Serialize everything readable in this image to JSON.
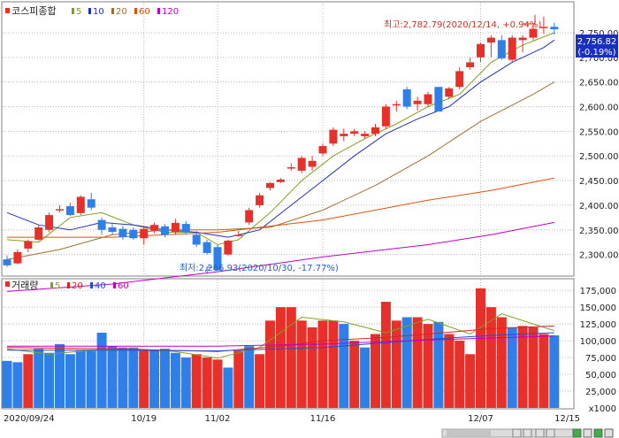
{
  "price_panel": {
    "title": "코스피종합",
    "ma_legend": [
      {
        "label": "5",
        "color": "#80a020"
      },
      {
        "label": "10",
        "color": "#2030c0"
      },
      {
        "label": "20",
        "color": "#a07030"
      },
      {
        "label": "60",
        "color": "#e05010"
      },
      {
        "label": "120",
        "color": "#c000c0"
      }
    ],
    "high_annotation": "최고:2,782.79(2020/12/14, +0.94%)",
    "low_annotation": "최저:2,266.93(2020/10/30, -17.77%)",
    "last_price": "2,756.82",
    "last_change": "(-0.19%)"
  },
  "volume_panel": {
    "title": "거래량",
    "ma_legend": [
      {
        "label": "5",
        "color": "#80a020"
      },
      {
        "label": "20",
        "color": "#e02020"
      },
      {
        "label": "40",
        "color": "#2050d0"
      },
      {
        "label": "60",
        "color": "#c000c0"
      }
    ],
    "unit": "x1000"
  },
  "colors": {
    "up": "#e8302a",
    "down": "#2f7fe8",
    "grid": "#b8b8b8"
  },
  "chart_data": [
    {
      "type": "candlestick",
      "title": "코스피종합",
      "y_ticks": [
        2300,
        2350,
        2400,
        2450,
        2500,
        2550,
        2600,
        2650,
        2700,
        2750
      ],
      "y_tick_labels": [
        "2,300.00",
        "2,350.00",
        "2,400.00",
        "2,450.00",
        "2,500.00",
        "2,550.00",
        "2,600.00",
        "2,650.00",
        "2,700.00",
        "2,750.00"
      ],
      "ylim": [
        2258,
        2811
      ],
      "x_tick_labels": [
        {
          "index": 0,
          "label": "2020/09/24"
        },
        {
          "index": 13,
          "label": "10/19"
        },
        {
          "index": 20,
          "label": "11/02"
        },
        {
          "index": 30,
          "label": "11/16"
        },
        {
          "index": 45,
          "label": "12/07"
        },
        {
          "index": 50,
          "label": "12/15"
        }
      ],
      "candles": [
        {
          "o": 2290,
          "h": 2298,
          "l": 2275,
          "c": 2278
        },
        {
          "o": 2282,
          "h": 2310,
          "l": 2280,
          "c": 2305
        },
        {
          "o": 2312,
          "h": 2330,
          "l": 2305,
          "c": 2327
        },
        {
          "o": 2330,
          "h": 2360,
          "l": 2328,
          "c": 2355
        },
        {
          "o": 2350,
          "h": 2385,
          "l": 2345,
          "c": 2380
        },
        {
          "o": 2392,
          "h": 2400,
          "l": 2385,
          "c": 2392
        },
        {
          "o": 2398,
          "h": 2405,
          "l": 2378,
          "c": 2380
        },
        {
          "o": 2384,
          "h": 2420,
          "l": 2380,
          "c": 2417
        },
        {
          "o": 2412,
          "h": 2425,
          "l": 2390,
          "c": 2395
        },
        {
          "o": 2370,
          "h": 2375,
          "l": 2340,
          "c": 2350
        },
        {
          "o": 2355,
          "h": 2362,
          "l": 2340,
          "c": 2346
        },
        {
          "o": 2352,
          "h": 2358,
          "l": 2330,
          "c": 2335
        },
        {
          "o": 2350,
          "h": 2355,
          "l": 2330,
          "c": 2333
        },
        {
          "o": 2333,
          "h": 2356,
          "l": 2320,
          "c": 2352
        },
        {
          "o": 2348,
          "h": 2365,
          "l": 2343,
          "c": 2360
        },
        {
          "o": 2357,
          "h": 2362,
          "l": 2335,
          "c": 2340
        },
        {
          "o": 2346,
          "h": 2372,
          "l": 2340,
          "c": 2364
        },
        {
          "o": 2362,
          "h": 2368,
          "l": 2340,
          "c": 2345
        },
        {
          "o": 2340,
          "h": 2348,
          "l": 2315,
          "c": 2320
        },
        {
          "o": 2325,
          "h": 2330,
          "l": 2300,
          "c": 2303
        },
        {
          "o": 2315,
          "h": 2320,
          "l": 2266.93,
          "c": 2268
        },
        {
          "o": 2300,
          "h": 2330,
          "l": 2298,
          "c": 2328
        },
        {
          "o": 2340,
          "h": 2348,
          "l": 2336,
          "c": 2340
        },
        {
          "o": 2365,
          "h": 2395,
          "l": 2360,
          "c": 2390
        },
        {
          "o": 2400,
          "h": 2425,
          "l": 2395,
          "c": 2420
        },
        {
          "o": 2435,
          "h": 2447,
          "l": 2430,
          "c": 2445
        },
        {
          "o": 2447,
          "h": 2455,
          "l": 2445,
          "c": 2452
        },
        {
          "o": 2477,
          "h": 2485,
          "l": 2470,
          "c": 2477
        },
        {
          "o": 2470,
          "h": 2500,
          "l": 2465,
          "c": 2496
        },
        {
          "o": 2478,
          "h": 2500,
          "l": 2470,
          "c": 2490
        },
        {
          "o": 2505,
          "h": 2525,
          "l": 2500,
          "c": 2520
        },
        {
          "o": 2525,
          "h": 2558,
          "l": 2520,
          "c": 2553
        },
        {
          "o": 2540,
          "h": 2555,
          "l": 2530,
          "c": 2545
        },
        {
          "o": 2545,
          "h": 2555,
          "l": 2540,
          "c": 2550
        },
        {
          "o": 2540,
          "h": 2550,
          "l": 2535,
          "c": 2545
        },
        {
          "o": 2545,
          "h": 2565,
          "l": 2540,
          "c": 2558
        },
        {
          "o": 2560,
          "h": 2605,
          "l": 2555,
          "c": 2600
        },
        {
          "o": 2605,
          "h": 2612,
          "l": 2590,
          "c": 2605
        },
        {
          "o": 2635,
          "h": 2640,
          "l": 2595,
          "c": 2600
        },
        {
          "o": 2605,
          "h": 2620,
          "l": 2592,
          "c": 2612
        },
        {
          "o": 2605,
          "h": 2630,
          "l": 2600,
          "c": 2625
        },
        {
          "o": 2640,
          "h": 2640,
          "l": 2590,
          "c": 2590
        },
        {
          "o": 2620,
          "h": 2640,
          "l": 2615,
          "c": 2637
        },
        {
          "o": 2640,
          "h": 2680,
          "l": 2635,
          "c": 2672
        },
        {
          "o": 2680,
          "h": 2700,
          "l": 2675,
          "c": 2690
        },
        {
          "o": 2700,
          "h": 2730,
          "l": 2690,
          "c": 2727
        },
        {
          "o": 2730,
          "h": 2745,
          "l": 2700,
          "c": 2740
        },
        {
          "o": 2735,
          "h": 2745,
          "l": 2695,
          "c": 2698
        },
        {
          "o": 2695,
          "h": 2745,
          "l": 2690,
          "c": 2740
        },
        {
          "o": 2735,
          "h": 2745,
          "l": 2710,
          "c": 2740
        },
        {
          "o": 2740,
          "h": 2766,
          "l": 2735,
          "c": 2758
        },
        {
          "o": 2762,
          "h": 2782.79,
          "l": 2748,
          "c": 2762
        },
        {
          "o": 2762,
          "h": 2770,
          "l": 2746,
          "c": 2756.82
        }
      ],
      "moving_averages": [
        {
          "name": "5",
          "color": "#80a020",
          "points": [
            [
              0,
              2330
            ],
            [
              3,
              2325
            ],
            [
              6,
              2375
            ],
            [
              9,
              2385
            ],
            [
              12,
              2360
            ],
            [
              15,
              2345
            ],
            [
              18,
              2345
            ],
            [
              20,
              2320
            ],
            [
              22,
              2330
            ],
            [
              25,
              2385
            ],
            [
              28,
              2450
            ],
            [
              31,
              2500
            ],
            [
              34,
              2535
            ],
            [
              37,
              2565
            ],
            [
              40,
              2600
            ],
            [
              43,
              2625
            ],
            [
              46,
              2690
            ],
            [
              49,
              2725
            ],
            [
              52,
              2750
            ]
          ]
        },
        {
          "name": "10",
          "color": "#2030c0",
          "points": [
            [
              0,
              2385
            ],
            [
              3,
              2360
            ],
            [
              6,
              2350
            ],
            [
              9,
              2365
            ],
            [
              12,
              2360
            ],
            [
              15,
              2350
            ],
            [
              18,
              2345
            ],
            [
              21,
              2335
            ],
            [
              24,
              2350
            ],
            [
              27,
              2400
            ],
            [
              30,
              2450
            ],
            [
              33,
              2500
            ],
            [
              36,
              2545
            ],
            [
              39,
              2575
            ],
            [
              42,
              2600
            ],
            [
              45,
              2650
            ],
            [
              48,
              2690
            ],
            [
              51,
              2720
            ],
            [
              52,
              2735
            ]
          ]
        },
        {
          "name": "20",
          "color": "#a07030",
          "points": [
            [
              0,
              2290
            ],
            [
              5,
              2310
            ],
            [
              10,
              2340
            ],
            [
              15,
              2350
            ],
            [
              20,
              2350
            ],
            [
              25,
              2355
            ],
            [
              30,
              2390
            ],
            [
              35,
              2440
            ],
            [
              40,
              2500
            ],
            [
              45,
              2570
            ],
            [
              50,
              2625
            ],
            [
              52,
              2650
            ]
          ]
        },
        {
          "name": "60",
          "color": "#e05010",
          "points": [
            [
              0,
              2335
            ],
            [
              10,
              2335
            ],
            [
              20,
              2345
            ],
            [
              30,
              2370
            ],
            [
              40,
              2410
            ],
            [
              46,
              2430
            ],
            [
              52,
              2455
            ]
          ]
        },
        {
          "name": "120",
          "color": "#c000c0",
          "points": [
            [
              0,
              2225
            ],
            [
              10,
              2240
            ],
            [
              20,
              2265
            ],
            [
              30,
              2295
            ],
            [
              40,
              2320
            ],
            [
              46,
              2340
            ],
            [
              52,
              2365
            ]
          ]
        }
      ]
    },
    {
      "type": "bar",
      "title": "거래량",
      "y_ticks": [
        25000,
        50000,
        75000,
        100000,
        125000,
        150000,
        175000
      ],
      "y_tick_labels": [
        "25,000",
        "50,000",
        "75,000",
        "100,000",
        "125,000",
        "150,000",
        "175,000"
      ],
      "ylim": [
        0,
        191000
      ],
      "unit": "x1000",
      "values": [
        70000,
        68000,
        80000,
        88000,
        82000,
        95000,
        80000,
        85000,
        85000,
        112000,
        92000,
        90000,
        90000,
        85000,
        85000,
        88000,
        82000,
        75000,
        80000,
        75000,
        72000,
        60000,
        85000,
        92000,
        80000,
        130000,
        150000,
        150000,
        130000,
        120000,
        130000,
        130000,
        125000,
        100000,
        90000,
        110000,
        158000,
        130000,
        135000,
        135000,
        125000,
        128000,
        110000,
        100000,
        80000,
        178000,
        150000,
        135000,
        120000,
        122000,
        120000,
        110000,
        108000
      ],
      "ups": [
        false,
        false,
        true,
        false,
        false,
        false,
        false,
        false,
        false,
        false,
        false,
        false,
        false,
        true,
        false,
        false,
        false,
        false,
        true,
        true,
        true,
        false,
        true,
        false,
        true,
        true,
        true,
        true,
        true,
        true,
        true,
        true,
        false,
        true,
        false,
        true,
        true,
        true,
        false,
        true,
        true,
        false,
        true,
        true,
        true,
        true,
        true,
        true,
        false,
        true,
        true,
        true,
        false
      ],
      "moving_averages": [
        {
          "name": "5",
          "color": "#80a020",
          "points": [
            [
              0,
              88000
            ],
            [
              4,
              80000
            ],
            [
              8,
              86000
            ],
            [
              12,
              88000
            ],
            [
              16,
              84000
            ],
            [
              20,
              74000
            ],
            [
              24,
              90000
            ],
            [
              28,
              135000
            ],
            [
              32,
              128000
            ],
            [
              36,
              112000
            ],
            [
              40,
              132000
            ],
            [
              44,
              110000
            ],
            [
              47,
              140000
            ],
            [
              50,
              125000
            ],
            [
              52,
              115000
            ]
          ]
        },
        {
          "name": "20",
          "color": "#e02020",
          "points": [
            [
              0,
              90000
            ],
            [
              10,
              88000
            ],
            [
              20,
              84000
            ],
            [
              26,
              92000
            ],
            [
              30,
              100000
            ],
            [
              36,
              105000
            ],
            [
              40,
              110000
            ],
            [
              46,
              118000
            ],
            [
              52,
              122000
            ]
          ]
        },
        {
          "name": "40",
          "color": "#2050d0",
          "points": [
            [
              0,
              86000
            ],
            [
              10,
              86000
            ],
            [
              20,
              85000
            ],
            [
              30,
              90000
            ],
            [
              40,
              102000
            ],
            [
              46,
              108000
            ],
            [
              52,
              112000
            ]
          ]
        },
        {
          "name": "60",
          "color": "#c000c0",
          "points": [
            [
              0,
              92000
            ],
            [
              10,
              92000
            ],
            [
              20,
              92000
            ],
            [
              30,
              95000
            ],
            [
              40,
              101000
            ],
            [
              46,
              104000
            ],
            [
              52,
              107000
            ]
          ]
        }
      ]
    }
  ]
}
